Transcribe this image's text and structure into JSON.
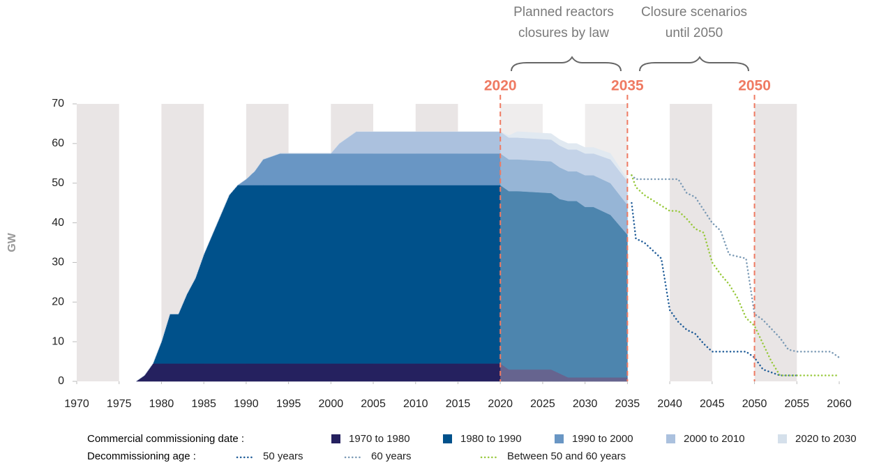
{
  "chart_data": {
    "type": "area",
    "ylabel": "GW",
    "annotations": [
      [
        "Planned reactors",
        "closures by law"
      ],
      [
        "Closure scenarios",
        "until 2050"
      ]
    ],
    "markers": [
      2020,
      2035,
      2050
    ],
    "xlim": [
      1970,
      2060
    ],
    "xticks": [
      1970,
      1975,
      1980,
      1985,
      1990,
      1995,
      2000,
      2005,
      2010,
      2015,
      2020,
      2025,
      2030,
      2035,
      2040,
      2045,
      2050,
      2055,
      2060
    ],
    "ylim": [
      0,
      70
    ],
    "yticks": [
      0,
      10,
      20,
      30,
      40,
      50,
      60,
      70
    ],
    "legend_titles": [
      "Commercial commissioning date :",
      "Decommissioning age :"
    ],
    "x": [
      1977,
      1978,
      1979,
      1980,
      1981,
      1982,
      1983,
      1984,
      1985,
      1986,
      1987,
      1988,
      1989,
      1990,
      1991,
      1992,
      1994,
      2000,
      2001,
      2003,
      2020,
      2021,
      2022,
      2026,
      2027,
      2028,
      2029,
      2030,
      2031,
      2033,
      2035
    ],
    "series": [
      {
        "name": "1970 to 1980",
        "color": "#25215f",
        "values": [
          0,
          1.5,
          4.5,
          4.5,
          4.5,
          4.5,
          4.5,
          4.5,
          4.5,
          4.5,
          4.5,
          4.5,
          4.5,
          4.5,
          4.5,
          4.5,
          4.5,
          4.5,
          4.5,
          4.5,
          4.5,
          3,
          3,
          3,
          2,
          1,
          1,
          1,
          1,
          1,
          1
        ]
      },
      {
        "name": "1980 to 1990",
        "color": "#00518b",
        "values": [
          0,
          0,
          0,
          5.5,
          12.5,
          12.5,
          17.5,
          21.5,
          27.5,
          32.5,
          37.5,
          42.5,
          45,
          45,
          45,
          45,
          45,
          45,
          45,
          45,
          45,
          45,
          45,
          44.5,
          44,
          44.5,
          44.5,
          43,
          43,
          41,
          36
        ]
      },
      {
        "name": "1990 to 2000",
        "color": "#6996c4",
        "values": [
          0,
          0,
          0,
          0,
          0,
          0,
          0,
          0,
          0,
          0,
          0,
          0,
          0,
          1.5,
          3.5,
          6.5,
          8,
          8,
          8,
          8,
          8,
          8,
          8,
          8,
          8,
          7.5,
          7.5,
          8,
          8,
          8,
          7.5
        ]
      },
      {
        "name": "2000 to 2010",
        "color": "#abc1de",
        "values": [
          0,
          0,
          0,
          0,
          0,
          0,
          0,
          0,
          0,
          0,
          0,
          0,
          0,
          0,
          0,
          0,
          0,
          0,
          2.5,
          5.5,
          5.5,
          5.5,
          5.5,
          5.5,
          5.5,
          5.5,
          5.5,
          5.5,
          5.5,
          6,
          6
        ]
      },
      {
        "name": "2020 to 2030",
        "color": "#d5e0eb",
        "values": [
          0,
          0,
          0,
          0,
          0,
          0,
          0,
          0,
          0,
          0,
          0,
          0,
          0,
          0,
          0,
          0,
          0,
          0,
          0,
          0,
          0,
          0.5,
          1.5,
          1.5,
          1.5,
          1.5,
          1.5,
          1.5,
          1.5,
          1.5,
          0.5
        ]
      }
    ],
    "lines": [
      {
        "name": "50 years",
        "color": "#1f5c98",
        "x": [
          2035.5,
          2036,
          2037,
          2039,
          2040,
          2041,
          2042,
          2043,
          2044,
          2045,
          2049,
          2050,
          2051,
          2053,
          2055
        ],
        "values": [
          45,
          36,
          35,
          31,
          18,
          15,
          13,
          12,
          9.5,
          7.5,
          7.5,
          6,
          3,
          1.5,
          1.5
        ]
      },
      {
        "name": "60 years",
        "color": "#7b9ab5",
        "x": [
          2035.5,
          2036,
          2041,
          2042,
          2043,
          2045,
          2046,
          2047,
          2049,
          2050,
          2051,
          2053,
          2054,
          2055,
          2059,
          2060
        ],
        "values": [
          52,
          51,
          51,
          47.5,
          46.5,
          40,
          38,
          32,
          31,
          17,
          15.5,
          11,
          8,
          7.5,
          7.5,
          6
        ]
      },
      {
        "name": "Between 50 and 60 years",
        "color": "#98c93c",
        "x": [
          2035.5,
          2036,
          2037,
          2040,
          2041,
          2042,
          2043,
          2044,
          2045,
          2046,
          2047,
          2048,
          2049,
          2050,
          2051,
          2052,
          2053,
          2054,
          2060
        ],
        "values": [
          52,
          49,
          47,
          43,
          43,
          41,
          38.5,
          37.5,
          30,
          27,
          24.5,
          21,
          16,
          14,
          9.5,
          5,
          1.5,
          1.5,
          1.5
        ]
      }
    ]
  }
}
